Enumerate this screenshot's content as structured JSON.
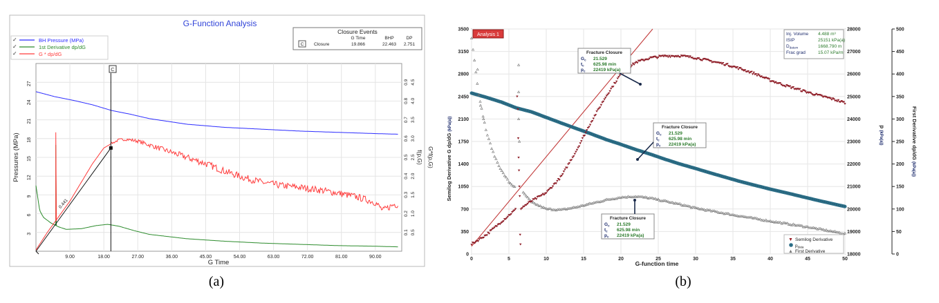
{
  "captions": {
    "a": "(a)",
    "b": "(b)"
  },
  "panel_a": {
    "title": "G-Function Analysis",
    "legend": [
      {
        "label": "BH Pressure (MPa)",
        "color": "#2b2bff"
      },
      {
        "label": "1st Derivative dp/dG",
        "color": "#2a8a2a"
      },
      {
        "label": "G * dp/dG",
        "color": "#ff3b3b"
      }
    ],
    "closure_box": {
      "title": "Closure Events",
      "headers": [
        "G Time",
        "BHP",
        "DP"
      ],
      "row": {
        "marker": "C",
        "label": "Closure",
        "g_time": "19.866",
        "bhp": "22.463",
        "dp": "2.751"
      }
    },
    "closure_marker": "C",
    "line_label": "0.441",
    "xlabel": "G Time",
    "ylabel": "Pressures (MPa)",
    "right_label_1": "f(p,G)",
    "right_label_2": "G*f(p,G)",
    "xticks": [
      "9.00",
      "18.00",
      "27.00",
      "36.00",
      "45.00",
      "54.00",
      "63.00",
      "72.00",
      "81.00",
      "90.00"
    ],
    "yticks": [
      "3",
      "6",
      "9",
      "12",
      "15",
      "18",
      "21",
      "24",
      "27"
    ],
    "r1ticks": [
      "0.1",
      "0.2",
      "0.3",
      "0.4",
      "0.5",
      "0.6",
      "0.7",
      "0.8",
      "0.9"
    ],
    "r2ticks": [
      "0.5",
      "1.0",
      "1.5",
      "2.0",
      "2.5",
      "3.0",
      "3.5",
      "4.0",
      "4.5"
    ]
  },
  "panel_b": {
    "tag": "Analysis 1",
    "info": [
      {
        "k": "Inj. Volume",
        "v": "4.488 m³"
      },
      {
        "k": "ISIP",
        "v": "25151 kPa(a)"
      },
      {
        "k": "D",
        "v": "1668.790 m"
      },
      {
        "k": "Frac grad",
        "v": "15.07 kPa/m"
      }
    ],
    "info_sub": "datum",
    "closure_title": "Fracture Closure",
    "closure_lines": [
      {
        "k": "G",
        "sub": "c",
        "v": "21.529"
      },
      {
        "k": "t",
        "sub": "c",
        "v": "625.98 min"
      },
      {
        "k": "p",
        "sub": "c",
        "v": "22419 kPa(a)"
      }
    ],
    "legend": [
      {
        "label": "Semilog Derivative",
        "color": "#9b1b24"
      },
      {
        "label": "p",
        "sub": "data",
        "color": "#2b6d86"
      },
      {
        "label": "First Derivative",
        "color": "#777777"
      }
    ],
    "xlabel": "G-function time",
    "ylabel_left": "Semilog Derivative  G dp/dG",
    "ylabel_left_unit": "(kPa(a))",
    "ylabel_mid": "p",
    "ylabel_mid_unit": "(kPa(a))",
    "ylabel_right": "First Derivative  dp/dG",
    "ylabel_right_unit": "(kPa(a))",
    "xticks": [
      "0",
      "5",
      "10",
      "15",
      "20",
      "25",
      "30",
      "35",
      "40",
      "45",
      "50"
    ],
    "yticks": [
      "0",
      "350",
      "700",
      "1050",
      "1400",
      "1750",
      "2100",
      "2450",
      "2800",
      "3150",
      "3500"
    ],
    "p_ticks": [
      "18000",
      "19000",
      "20000",
      "21000",
      "22000",
      "23000",
      "24000",
      "25000",
      "26000",
      "27000",
      "28000"
    ],
    "d_ticks": [
      "0",
      "50",
      "100",
      "150",
      "200",
      "250",
      "300",
      "350",
      "400",
      "450",
      "500"
    ]
  },
  "chart_data": [
    {
      "type": "line",
      "title": "G-Function Analysis",
      "xlabel": "G Time",
      "ylabel": "Pressures (MPa)",
      "xlim": [
        0,
        97
      ],
      "ylim": [
        0,
        30
      ],
      "grid": true,
      "legend_position": "top-left",
      "annotations": [
        "C",
        "0.441"
      ],
      "series": [
        {
          "name": "BH Pressure (MPa)",
          "x": [
            0,
            5,
            10,
            15,
            20,
            25,
            30,
            40,
            50,
            60,
            70,
            80,
            90,
            96
          ],
          "y": [
            25.5,
            24.7,
            24.1,
            23.4,
            22.5,
            21.9,
            21.2,
            20.3,
            19.8,
            19.5,
            19.2,
            19.0,
            18.8,
            18.7
          ]
        },
        {
          "name": "1st Derivative dp/dG",
          "x": [
            0,
            1,
            2,
            4,
            6,
            8,
            12,
            16,
            19,
            22,
            26,
            30,
            40,
            50,
            60,
            70,
            80,
            90,
            96
          ],
          "y": [
            10.5,
            6.5,
            5.4,
            4.5,
            3.9,
            3.5,
            3.6,
            4.1,
            4.3,
            4.0,
            3.3,
            2.7,
            2.0,
            1.6,
            1.3,
            1.1,
            0.9,
            0.8,
            0.7
          ]
        },
        {
          "name": "G * dp/dG",
          "x": [
            0,
            3,
            6,
            9,
            12,
            15,
            18,
            20,
            22,
            24,
            27,
            30,
            35,
            40,
            45,
            50,
            55,
            60,
            65,
            70,
            75,
            80,
            85,
            90,
            92,
            95,
            96
          ],
          "y": [
            0.2,
            3.0,
            5.5,
            8.0,
            11.0,
            14.0,
            16.5,
            17.2,
            17.8,
            17.9,
            17.6,
            17.0,
            16.0,
            15.0,
            14.0,
            12.8,
            11.8,
            11.0,
            10.5,
            10.2,
            9.8,
            9.3,
            8.7,
            7.8,
            6.5,
            7.5,
            7.4
          ]
        }
      ],
      "closure": {
        "g_time": 19.866,
        "bhp": 22.463,
        "dp": 2.751
      }
    },
    {
      "type": "scatter",
      "xlabel": "G-function time",
      "xlim": [
        0,
        50
      ],
      "ylim": [
        0,
        3500
      ],
      "grid": true,
      "legend_position": "bottom-right",
      "secondary_axes": {
        "p_range": [
          18000,
          28000
        ],
        "first_derivative_range": [
          0,
          500
        ]
      },
      "series": [
        {
          "name": "Semilog Derivative",
          "x": [
            0,
            2,
            4,
            6,
            6.5,
            8,
            10,
            12,
            14,
            16,
            18,
            20,
            22,
            24,
            26,
            28,
            30,
            32,
            34,
            36,
            38,
            40,
            42,
            44,
            46,
            48,
            50
          ],
          "y": [
            150,
            300,
            500,
            700,
            700,
            820,
            950,
            1200,
            1600,
            2050,
            2450,
            2800,
            2980,
            3050,
            3080,
            3080,
            3050,
            3000,
            2950,
            2880,
            2800,
            2700,
            2620,
            2550,
            2480,
            2420,
            2350
          ]
        },
        {
          "name": "p data",
          "x": [
            0,
            2,
            4,
            6,
            8,
            10,
            12,
            14,
            16,
            18,
            20,
            22,
            24,
            26,
            28,
            30,
            32,
            34,
            36,
            38,
            40,
            42,
            44,
            46,
            48,
            50
          ],
          "y": [
            25150,
            24960,
            24750,
            24490,
            24320,
            24070,
            23820,
            23580,
            23340,
            23090,
            22870,
            22640,
            22430,
            22200,
            21990,
            21800,
            21600,
            21410,
            21220,
            21050,
            20880,
            20730,
            20570,
            20410,
            20260,
            20110
          ]
        },
        {
          "name": "First Derivative",
          "x": [
            0,
            1,
            2,
            3,
            4,
            5,
            6,
            7,
            8,
            10,
            12,
            14,
            16,
            18,
            20,
            22,
            24,
            26,
            28,
            30,
            35,
            40,
            45,
            50
          ],
          "y": [
            480,
            350,
            270,
            220,
            185,
            160,
            145,
            135,
            115,
            100,
            98,
            104,
            112,
            120,
            126,
            128,
            124,
            117,
            110,
            102,
            87,
            73,
            60,
            45
          ]
        }
      ],
      "closure": {
        "g": 21.529,
        "t_min": 625.98,
        "p_kpa": 22419
      },
      "closure_line": {
        "x": [
          0,
          16
        ],
        "y": [
          120,
          2350
        ]
      }
    }
  ]
}
